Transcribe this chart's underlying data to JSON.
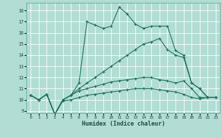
{
  "xlabel": "Humidex (Indice chaleur)",
  "bg_color": "#b2ddd4",
  "grid_color": "#d4eeea",
  "line_color": "#1a6e5e",
  "xlim": [
    -0.5,
    23.5
  ],
  "ylim": [
    8.8,
    18.7
  ],
  "yticks": [
    9,
    10,
    11,
    12,
    13,
    14,
    15,
    16,
    17,
    18
  ],
  "xticks": [
    0,
    1,
    2,
    3,
    4,
    5,
    6,
    7,
    8,
    9,
    10,
    11,
    12,
    13,
    14,
    15,
    16,
    17,
    18,
    19,
    20,
    21,
    22,
    23
  ],
  "series": [
    {
      "x": [
        0,
        1,
        2,
        3,
        4,
        5,
        6,
        7,
        8,
        9,
        10,
        11,
        12,
        13,
        14,
        15,
        16,
        17,
        18,
        19,
        20,
        21,
        22,
        23
      ],
      "y": [
        10.4,
        10.0,
        10.5,
        8.7,
        10.0,
        10.4,
        11.5,
        17.0,
        16.7,
        16.4,
        16.6,
        18.3,
        17.7,
        16.8,
        16.4,
        16.6,
        16.6,
        16.6,
        14.4,
        14.0,
        11.5,
        11.0,
        10.2,
        10.2
      ]
    },
    {
      "x": [
        0,
        1,
        2,
        3,
        4,
        5,
        6,
        7,
        8,
        9,
        10,
        11,
        12,
        13,
        14,
        15,
        16,
        17,
        18,
        19,
        20,
        21,
        22,
        23
      ],
      "y": [
        10.4,
        10.0,
        10.5,
        8.7,
        10.0,
        10.4,
        11.0,
        11.5,
        12.0,
        12.5,
        13.0,
        13.5,
        14.0,
        14.5,
        15.0,
        15.2,
        15.5,
        14.5,
        14.0,
        13.8,
        11.5,
        11.0,
        10.2,
        10.2
      ]
    },
    {
      "x": [
        0,
        1,
        2,
        3,
        4,
        5,
        6,
        7,
        8,
        9,
        10,
        11,
        12,
        13,
        14,
        15,
        16,
        17,
        18,
        19,
        20,
        21,
        22,
        23
      ],
      "y": [
        10.4,
        10.0,
        10.5,
        8.7,
        10.0,
        10.4,
        10.8,
        11.0,
        11.2,
        11.4,
        11.6,
        11.7,
        11.8,
        11.9,
        12.0,
        12.0,
        11.8,
        11.7,
        11.5,
        11.7,
        11.0,
        10.2,
        10.2,
        10.2
      ]
    },
    {
      "x": [
        0,
        1,
        2,
        3,
        4,
        5,
        6,
        7,
        8,
        9,
        10,
        11,
        12,
        13,
        14,
        15,
        16,
        17,
        18,
        19,
        20,
        21,
        22,
        23
      ],
      "y": [
        10.4,
        10.0,
        10.5,
        8.7,
        9.9,
        10.0,
        10.2,
        10.4,
        10.5,
        10.6,
        10.7,
        10.8,
        10.9,
        11.0,
        11.0,
        11.0,
        10.9,
        10.8,
        10.7,
        10.5,
        10.2,
        10.1,
        10.2,
        10.2
      ]
    }
  ]
}
